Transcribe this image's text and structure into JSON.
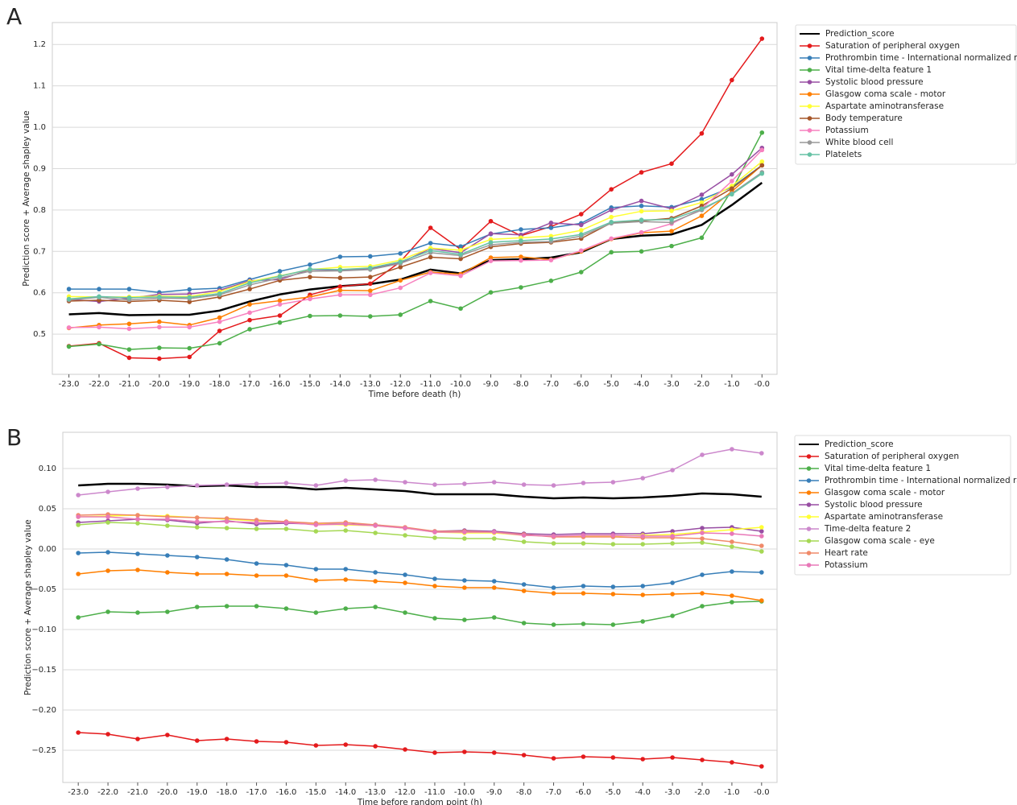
{
  "chart_data": [
    {
      "type": "line",
      "panel_label": "A",
      "xlabel": "Time before death (h)",
      "ylabel": "Prediction score + Average shapley value",
      "grid": true,
      "x": [
        -23,
        -22,
        -21,
        -20,
        -19,
        -18,
        -17,
        -16,
        -15,
        -14,
        -13,
        -12,
        -11,
        -10,
        -9,
        -8,
        -7,
        -6,
        -5,
        -4,
        -3,
        -2,
        -1,
        0
      ],
      "xlim": [
        -23.55,
        0.5
      ],
      "xticks": [
        {
          "value": -23,
          "label": "-23.0"
        },
        {
          "value": -22,
          "label": "-22.0"
        },
        {
          "value": -21,
          "label": "-21.0"
        },
        {
          "value": -20,
          "label": "-20.0"
        },
        {
          "value": -19,
          "label": "-19.0"
        },
        {
          "value": -18,
          "label": "-18.0"
        },
        {
          "value": -17,
          "label": "-17.0"
        },
        {
          "value": -16,
          "label": "-16.0"
        },
        {
          "value": -15,
          "label": "-15.0"
        },
        {
          "value": -14,
          "label": "-14.0"
        },
        {
          "value": -13,
          "label": "-13.0"
        },
        {
          "value": -12,
          "label": "-12.0"
        },
        {
          "value": -11,
          "label": "-11.0"
        },
        {
          "value": -10,
          "label": "-10.0"
        },
        {
          "value": -9,
          "label": "-9.0"
        },
        {
          "value": -8,
          "label": "-8.0"
        },
        {
          "value": -7,
          "label": "-7.0"
        },
        {
          "value": -6,
          "label": "-6.0"
        },
        {
          "value": -5,
          "label": "-5.0"
        },
        {
          "value": -4,
          "label": "-4.0"
        },
        {
          "value": -3,
          "label": "-3.0"
        },
        {
          "value": -2,
          "label": "-2.0"
        },
        {
          "value": -1,
          "label": "-1.0"
        },
        {
          "value": 0,
          "label": "-0.0"
        }
      ],
      "ylim": [
        0.403,
        1.253
      ],
      "yticks": [
        0.5,
        0.6,
        0.7,
        0.8,
        0.9,
        {
          "value": 1,
          "label": "1.0"
        },
        1.1,
        1.2
      ],
      "series": [
        {
          "name": "Prediction_score",
          "color": "#000000",
          "marker": false,
          "values": [
            0.548,
            0.551,
            0.546,
            0.547,
            0.547,
            0.557,
            0.579,
            0.596,
            0.608,
            0.616,
            0.621,
            0.632,
            0.656,
            0.647,
            0.679,
            0.681,
            0.685,
            0.698,
            0.73,
            0.738,
            0.741,
            0.764,
            0.812,
            0.866
          ]
        },
        {
          "name": "Saturation of peripheral oxygen",
          "color": "#e41a1c",
          "values": [
            0.471,
            0.478,
            0.443,
            0.441,
            0.445,
            0.508,
            0.534,
            0.545,
            0.595,
            0.615,
            0.622,
            0.675,
            0.757,
            0.705,
            0.773,
            0.738,
            0.76,
            0.79,
            0.85,
            0.891,
            0.912,
            0.985,
            1.114,
            1.214
          ]
        },
        {
          "name": "Prothrombin time - International normalized ratio",
          "color": "#377eb8",
          "values": [
            0.609,
            0.609,
            0.609,
            0.601,
            0.608,
            0.611,
            0.632,
            0.652,
            0.668,
            0.687,
            0.688,
            0.695,
            0.72,
            0.712,
            0.742,
            0.753,
            0.757,
            0.768,
            0.806,
            0.81,
            0.807,
            0.826,
            0.855,
            0.908
          ]
        },
        {
          "name": "Vital time-delta feature 1",
          "color": "#4daf4a",
          "values": [
            0.47,
            0.476,
            0.463,
            0.467,
            0.466,
            0.478,
            0.512,
            0.528,
            0.544,
            0.545,
            0.543,
            0.547,
            0.58,
            0.562,
            0.601,
            0.613,
            0.629,
            0.65,
            0.698,
            0.7,
            0.713,
            0.733,
            0.848,
            0.987
          ]
        },
        {
          "name": "Systolic blood pressure",
          "color": "#984ea3",
          "values": [
            0.584,
            0.579,
            0.587,
            0.596,
            0.597,
            0.606,
            0.629,
            0.632,
            0.656,
            0.655,
            0.658,
            0.672,
            0.707,
            0.697,
            0.743,
            0.74,
            0.769,
            0.764,
            0.8,
            0.822,
            0.803,
            0.837,
            0.886,
            0.95
          ]
        },
        {
          "name": "Glasgow coma scale - motor",
          "color": "#ff7f00",
          "values": [
            0.515,
            0.522,
            0.525,
            0.53,
            0.522,
            0.54,
            0.572,
            0.581,
            0.59,
            0.606,
            0.605,
            0.63,
            0.65,
            0.645,
            0.685,
            0.687,
            0.68,
            0.7,
            0.73,
            0.745,
            0.749,
            0.786,
            0.845,
            0.908
          ]
        },
        {
          "name": "Aspartate aminotransferase",
          "color": "#ffff33",
          "values": [
            0.591,
            0.59,
            0.59,
            0.592,
            0.591,
            0.603,
            0.627,
            0.641,
            0.656,
            0.662,
            0.664,
            0.679,
            0.708,
            0.703,
            0.729,
            0.733,
            0.737,
            0.751,
            0.783,
            0.797,
            0.798,
            0.818,
            0.858,
            0.917
          ]
        },
        {
          "name": "Body temperature",
          "color": "#a65628",
          "values": [
            0.58,
            0.582,
            0.579,
            0.582,
            0.578,
            0.59,
            0.609,
            0.63,
            0.638,
            0.636,
            0.638,
            0.662,
            0.686,
            0.682,
            0.711,
            0.719,
            0.722,
            0.731,
            0.769,
            0.774,
            0.78,
            0.81,
            0.852,
            0.908
          ]
        },
        {
          "name": "Potassium",
          "color": "#f781bf",
          "values": [
            0.516,
            0.517,
            0.513,
            0.517,
            0.517,
            0.53,
            0.552,
            0.572,
            0.585,
            0.595,
            0.595,
            0.612,
            0.648,
            0.641,
            0.677,
            0.678,
            0.679,
            0.702,
            0.731,
            0.746,
            0.767,
            0.803,
            0.87,
            0.945
          ]
        },
        {
          "name": "White blood cell",
          "color": "#999999",
          "values": [
            0.583,
            0.589,
            0.583,
            0.587,
            0.586,
            0.595,
            0.619,
            0.636,
            0.652,
            0.653,
            0.656,
            0.671,
            0.697,
            0.69,
            0.716,
            0.722,
            0.724,
            0.737,
            0.768,
            0.772,
            0.77,
            0.8,
            0.84,
            0.891
          ]
        },
        {
          "name": "Platelets",
          "color": "#66c2a5",
          "values": [
            0.585,
            0.591,
            0.588,
            0.59,
            0.589,
            0.598,
            0.624,
            0.64,
            0.657,
            0.656,
            0.66,
            0.675,
            0.702,
            0.693,
            0.722,
            0.726,
            0.73,
            0.741,
            0.771,
            0.776,
            0.777,
            0.803,
            0.838,
            0.888
          ]
        }
      ]
    },
    {
      "type": "line",
      "panel_label": "B",
      "xlabel": "Time before random point (h)",
      "ylabel": "Prediction score + Average shapley value",
      "grid": true,
      "x": [
        -23,
        -22,
        -21,
        -20,
        -19,
        -18,
        -17,
        -16,
        -15,
        -14,
        -13,
        -12,
        -11,
        -10,
        -9,
        -8,
        -7,
        -6,
        -5,
        -4,
        -3,
        -2,
        -1,
        0
      ],
      "xlim": [
        -23.52,
        0.52
      ],
      "xticks": [
        {
          "value": -23,
          "label": "-23.0"
        },
        {
          "value": -22,
          "label": "-22.0"
        },
        {
          "value": -21,
          "label": "-21.0"
        },
        {
          "value": -20,
          "label": "-20.0"
        },
        {
          "value": -19,
          "label": "-19.0"
        },
        {
          "value": -18,
          "label": "-18.0"
        },
        {
          "value": -17,
          "label": "-17.0"
        },
        {
          "value": -16,
          "label": "-16.0"
        },
        {
          "value": -15,
          "label": "-15.0"
        },
        {
          "value": -14,
          "label": "-14.0"
        },
        {
          "value": -13,
          "label": "-13.0"
        },
        {
          "value": -12,
          "label": "-12.0"
        },
        {
          "value": -11,
          "label": "-11.0"
        },
        {
          "value": -10,
          "label": "-10.0"
        },
        {
          "value": -9,
          "label": "-9.0"
        },
        {
          "value": -8,
          "label": "-8.0"
        },
        {
          "value": -7,
          "label": "-7.0"
        },
        {
          "value": -6,
          "label": "-6.0"
        },
        {
          "value": -5,
          "label": "-5.0"
        },
        {
          "value": -4,
          "label": "-4.0"
        },
        {
          "value": -3,
          "label": "-3.0"
        },
        {
          "value": -2,
          "label": "-2.0"
        },
        {
          "value": -1,
          "label": "-1.0"
        },
        {
          "value": 0,
          "label": "-0.0"
        }
      ],
      "ylim": [
        -0.29,
        0.145
      ],
      "yticks": [
        {
          "value": 0.1,
          "label": "0.10"
        },
        {
          "value": 0.05,
          "label": "0.05"
        },
        {
          "value": 0,
          "label": "0.00"
        },
        {
          "value": -0.05,
          "label": "−0.05"
        },
        {
          "value": -0.1,
          "label": "−0.10"
        },
        {
          "value": -0.15,
          "label": "−0.15"
        },
        {
          "value": -0.2,
          "label": "−0.20"
        },
        {
          "value": -0.25,
          "label": "−0.25"
        }
      ],
      "series": [
        {
          "name": "Prediction_score",
          "color": "#000000",
          "marker": false,
          "values": [
            0.079,
            0.081,
            0.081,
            0.08,
            0.078,
            0.079,
            0.077,
            0.077,
            0.074,
            0.076,
            0.074,
            0.072,
            0.068,
            0.068,
            0.068,
            0.065,
            0.063,
            0.064,
            0.063,
            0.064,
            0.066,
            0.069,
            0.068,
            0.065
          ]
        },
        {
          "name": "Saturation of peripheral oxygen",
          "color": "#e41a1c",
          "values": [
            -0.228,
            -0.23,
            -0.236,
            -0.231,
            -0.238,
            -0.236,
            -0.239,
            -0.24,
            -0.244,
            -0.243,
            -0.245,
            -0.249,
            -0.253,
            -0.252,
            -0.253,
            -0.256,
            -0.26,
            -0.258,
            -0.259,
            -0.261,
            -0.259,
            -0.262,
            -0.265,
            -0.27
          ]
        },
        {
          "name": "Vital time-delta feature 1",
          "color": "#4daf4a",
          "values": [
            -0.085,
            -0.078,
            -0.079,
            -0.078,
            -0.072,
            -0.071,
            -0.071,
            -0.074,
            -0.079,
            -0.074,
            -0.072,
            -0.079,
            -0.086,
            -0.088,
            -0.085,
            -0.092,
            -0.094,
            -0.093,
            -0.094,
            -0.09,
            -0.083,
            -0.071,
            -0.066,
            -0.065
          ]
        },
        {
          "name": "Prothrombin time - International normalized ratio",
          "color": "#377eb8",
          "values": [
            -0.005,
            -0.004,
            -0.006,
            -0.008,
            -0.01,
            -0.013,
            -0.018,
            -0.02,
            -0.025,
            -0.025,
            -0.029,
            -0.032,
            -0.037,
            -0.039,
            -0.04,
            -0.044,
            -0.048,
            -0.046,
            -0.047,
            -0.046,
            -0.042,
            -0.032,
            -0.028,
            -0.029
          ]
        },
        {
          "name": "Glasgow coma scale - motor",
          "color": "#ff7f00",
          "values": [
            -0.031,
            -0.027,
            -0.026,
            -0.029,
            -0.031,
            -0.031,
            -0.033,
            -0.033,
            -0.039,
            -0.038,
            -0.04,
            -0.042,
            -0.046,
            -0.048,
            -0.048,
            -0.052,
            -0.055,
            -0.055,
            -0.056,
            -0.057,
            -0.056,
            -0.055,
            -0.058,
            -0.064
          ]
        },
        {
          "name": "Systolic blood pressure",
          "color": "#984ea3",
          "values": [
            0.033,
            0.035,
            0.037,
            0.036,
            0.032,
            0.035,
            0.031,
            0.032,
            0.031,
            0.031,
            0.03,
            0.026,
            0.022,
            0.023,
            0.022,
            0.019,
            0.018,
            0.019,
            0.019,
            0.019,
            0.022,
            0.026,
            0.027,
            0.022
          ]
        },
        {
          "name": "Aspartate aminotransferase",
          "color": "#ffff33",
          "values": [
            0.04,
            0.041,
            0.042,
            0.041,
            0.039,
            0.037,
            0.035,
            0.034,
            0.031,
            0.03,
            0.029,
            0.026,
            0.021,
            0.02,
            0.02,
            0.017,
            0.016,
            0.016,
            0.016,
            0.017,
            0.018,
            0.021,
            0.024,
            0.027
          ]
        },
        {
          "name": "Time-delta feature 2",
          "color": "#cc88cc",
          "values": [
            0.067,
            0.071,
            0.075,
            0.077,
            0.079,
            0.08,
            0.081,
            0.082,
            0.079,
            0.085,
            0.086,
            0.083,
            0.08,
            0.081,
            0.083,
            0.08,
            0.079,
            0.082,
            0.083,
            0.088,
            0.098,
            0.117,
            0.124,
            0.119
          ]
        },
        {
          "name": "Glasgow coma scale - eye",
          "color": "#a6d854",
          "values": [
            0.03,
            0.033,
            0.032,
            0.029,
            0.027,
            0.026,
            0.025,
            0.025,
            0.022,
            0.023,
            0.02,
            0.017,
            0.014,
            0.013,
            0.013,
            0.009,
            0.007,
            0.007,
            0.006,
            0.006,
            0.007,
            0.008,
            0.003,
            -0.003
          ]
        },
        {
          "name": "Heart rate",
          "color": "#f08a6a",
          "values": [
            0.042,
            0.043,
            0.042,
            0.04,
            0.039,
            0.038,
            0.036,
            0.034,
            0.032,
            0.033,
            0.03,
            0.027,
            0.022,
            0.022,
            0.021,
            0.018,
            0.015,
            0.015,
            0.015,
            0.014,
            0.014,
            0.013,
            0.009,
            0.004
          ]
        },
        {
          "name": "Potassium",
          "color": "#e878b8",
          "values": [
            0.04,
            0.04,
            0.037,
            0.037,
            0.034,
            0.034,
            0.033,
            0.033,
            0.03,
            0.031,
            0.029,
            0.026,
            0.021,
            0.021,
            0.021,
            0.017,
            0.016,
            0.017,
            0.017,
            0.016,
            0.016,
            0.02,
            0.019,
            0.016
          ]
        }
      ]
    }
  ]
}
